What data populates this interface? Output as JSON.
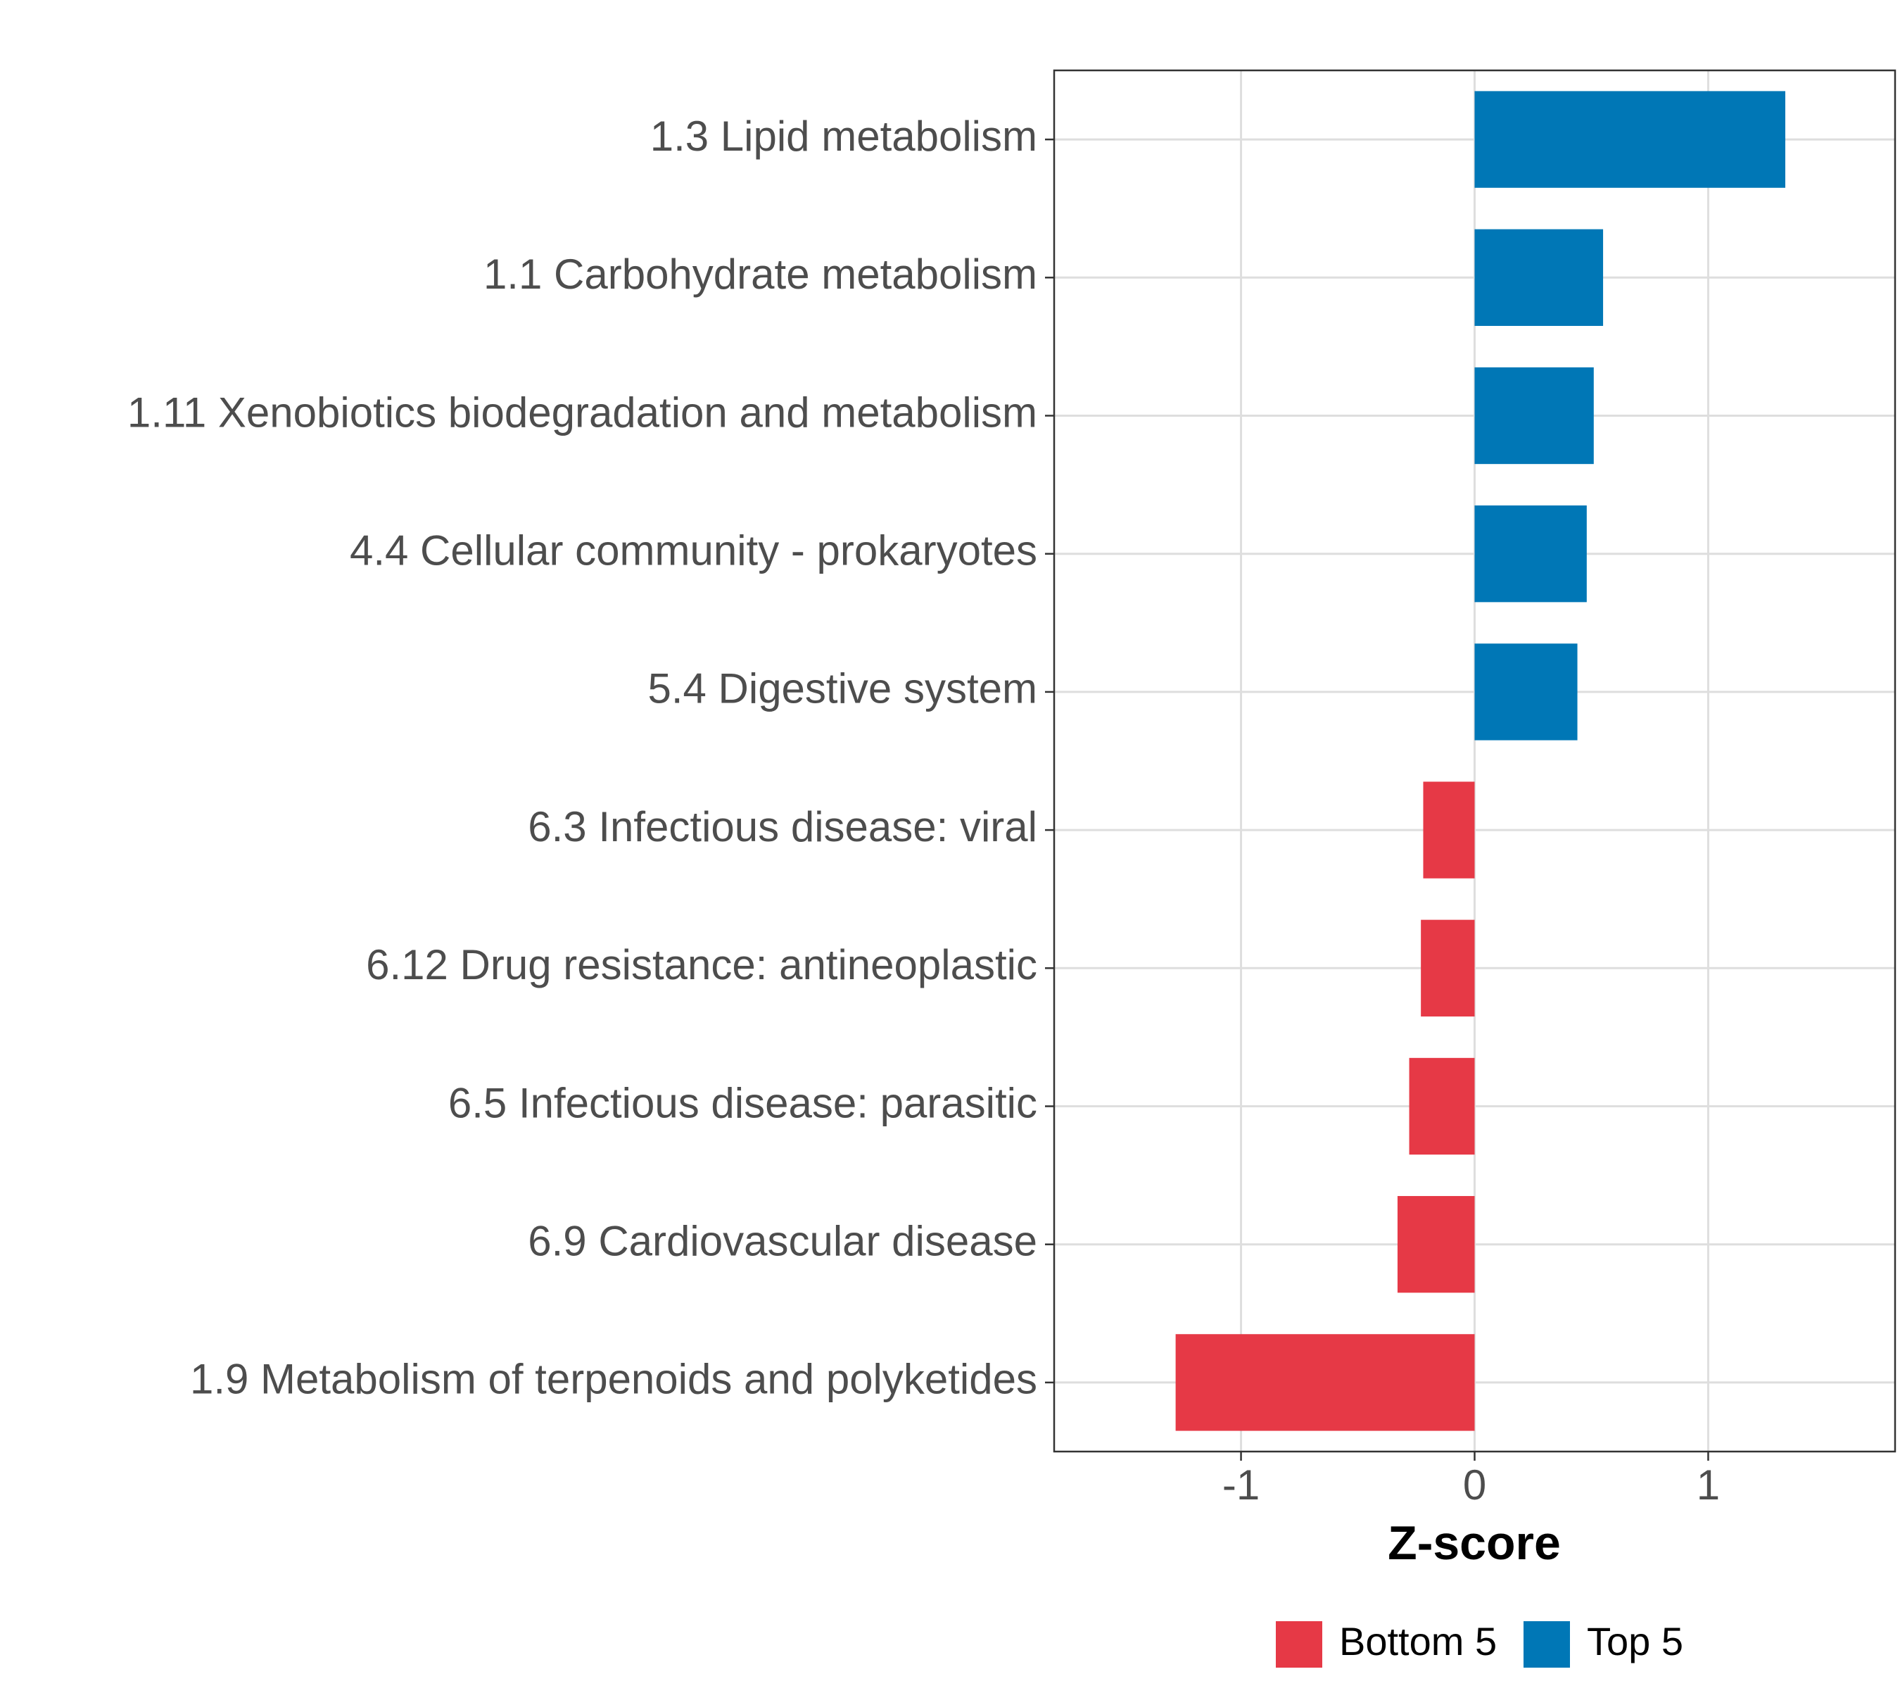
{
  "chart_data": {
    "type": "bar",
    "orientation": "horizontal",
    "title": "",
    "xlabel": "Z-score",
    "ylabel": "",
    "xlim": [
      -1.8,
      1.8
    ],
    "xticks": [
      -1,
      0,
      1
    ],
    "xtick_labels": [
      "-1",
      "0",
      "1"
    ],
    "grid": true,
    "legend_position": "bottom",
    "categories": [
      "1.3 Lipid metabolism",
      "1.1 Carbohydrate metabolism",
      "1.11 Xenobiotics biodegradation and metabolism",
      "4.4 Cellular community - prokaryotes",
      "5.4 Digestive system",
      "6.3 Infectious disease: viral",
      "6.12 Drug resistance: antineoplastic",
      "6.5 Infectious disease: parasitic",
      "6.9 Cardiovascular disease",
      "1.9 Metabolism of terpenoids and polyketides"
    ],
    "values": [
      1.33,
      0.55,
      0.51,
      0.48,
      0.44,
      -0.22,
      -0.23,
      -0.28,
      -0.33,
      -1.28
    ],
    "groups": [
      "Top 5",
      "Top 5",
      "Top 5",
      "Top 5",
      "Top 5",
      "Bottom 5",
      "Bottom 5",
      "Bottom 5",
      "Bottom 5",
      "Bottom 5"
    ],
    "legend": [
      {
        "name": "Bottom 5",
        "color": "#e63946"
      },
      {
        "name": "Top 5",
        "color": "#0077b6"
      }
    ]
  }
}
